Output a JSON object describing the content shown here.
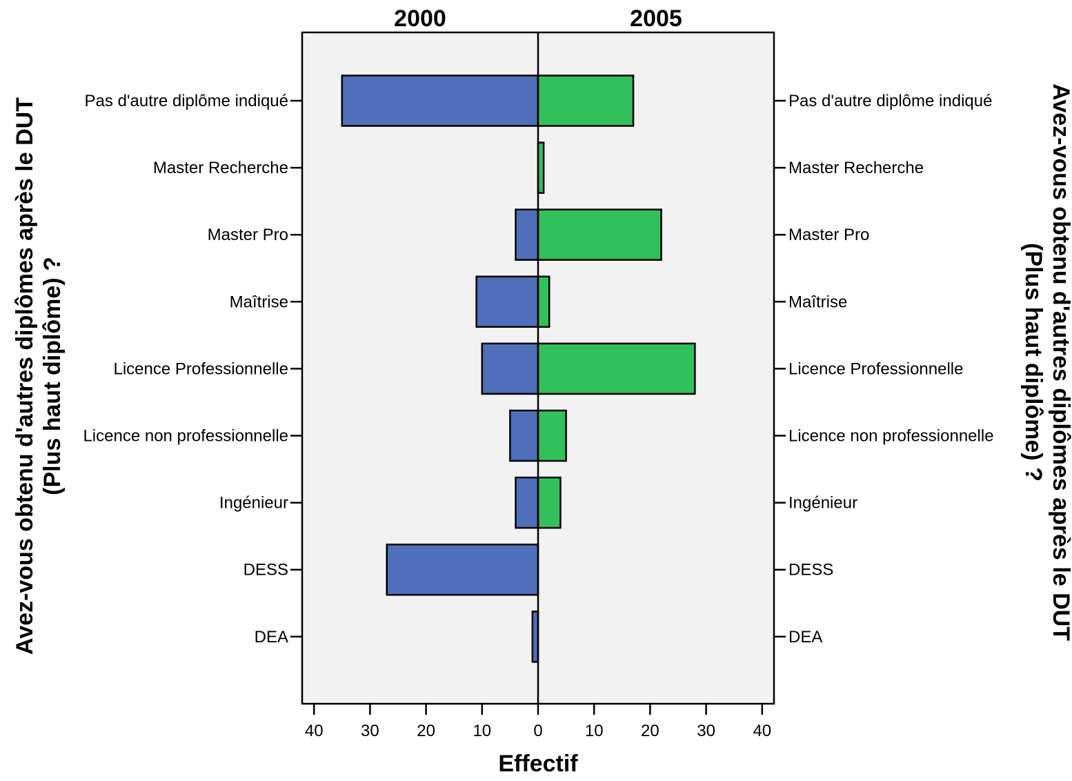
{
  "chart_data": {
    "type": "bar",
    "orientation": "horizontal-back-to-back",
    "categories": [
      "Pas d'autre diplôme indiqué",
      "Master Recherche",
      "Master Pro",
      "Maîtrise",
      "Licence Professionnelle",
      "Licence non professionnelle",
      "Ingénieur",
      "DESS",
      "DEA"
    ],
    "series": [
      {
        "name": "2000",
        "color": "#4f6fbb",
        "values": [
          35,
          0,
          4,
          11,
          10,
          5,
          4,
          27,
          1
        ]
      },
      {
        "name": "2005",
        "color": "#32c05a",
        "values": [
          17,
          1,
          22,
          2,
          28,
          5,
          4,
          0,
          0
        ]
      }
    ],
    "xlabel": "Effectif",
    "ylabel": "Avez-vous obtenu d'autres diplômes après le DUT (Plus haut diplôme) ?",
    "ylabel_line1": "Avez-vous obtenu d'autres diplômes après le DUT",
    "ylabel_line2": "(Plus haut diplôme) ?",
    "xlim": [
      0,
      42
    ],
    "xticks": [
      "40",
      "30",
      "20",
      "10",
      "0",
      "10",
      "20",
      "30",
      "40"
    ],
    "plot_background": "#f2f2f2",
    "grid": false
  }
}
